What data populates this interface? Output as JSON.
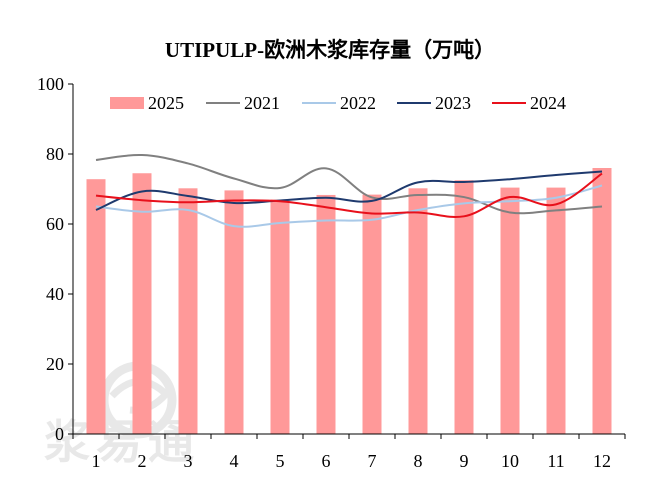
{
  "chart_data": {
    "type": "bar+line",
    "title": "UTIPULP-欧洲木浆库存量（万吨）",
    "categories": [
      "1",
      "2",
      "3",
      "4",
      "5",
      "6",
      "7",
      "8",
      "9",
      "10",
      "11",
      "12"
    ],
    "ylim": [
      0,
      100
    ],
    "yticks": [
      0,
      20,
      40,
      60,
      80,
      100
    ],
    "grid": false,
    "legend_position": "top",
    "bar_series": {
      "name": "2025",
      "color": "#ff9999",
      "values": [
        72.8,
        74.5,
        70.2,
        69.6,
        67.0,
        68.3,
        68.4,
        70.2,
        72.5,
        70.4,
        70.4,
        76.0
      ]
    },
    "line_series": [
      {
        "name": "2021",
        "color": "#808080",
        "values": [
          78.3,
          79.7,
          77.3,
          73.0,
          70.3,
          75.9,
          67.6,
          68.3,
          67.7,
          63.3,
          63.9,
          65.0
        ]
      },
      {
        "name": "2022",
        "color": "#a9c9e8",
        "values": [
          65.0,
          63.5,
          64.0,
          59.4,
          60.3,
          61.0,
          61.2,
          64.0,
          65.9,
          66.5,
          67.5,
          71.0
        ]
      },
      {
        "name": "2023",
        "color": "#1f3a6e",
        "values": [
          64.0,
          69.3,
          68.0,
          66.0,
          66.7,
          67.5,
          66.6,
          71.9,
          72.0,
          72.8,
          74.0,
          75.0
        ]
      },
      {
        "name": "2024",
        "color": "#e8101b",
        "values": [
          68.1,
          66.8,
          66.2,
          66.7,
          66.5,
          64.8,
          63.0,
          63.3,
          62.2,
          67.7,
          65.6,
          74.4
        ]
      }
    ]
  },
  "watermark": "浆易通"
}
